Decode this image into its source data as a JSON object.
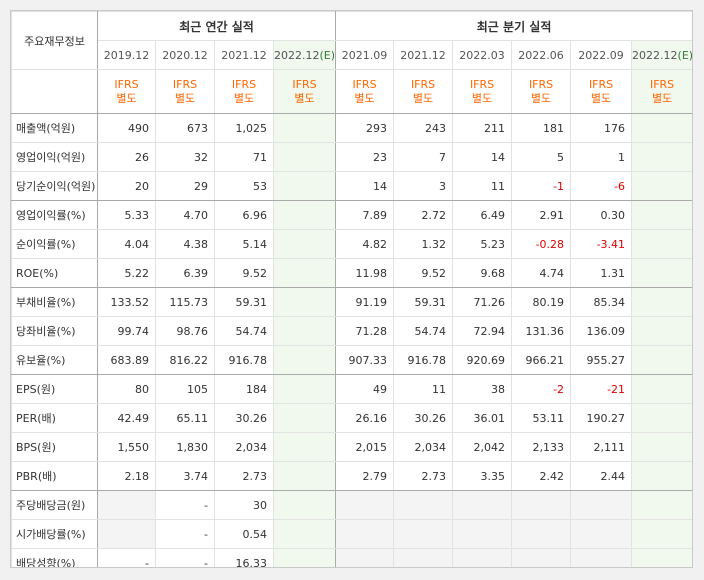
{
  "header": {
    "corner": "주요재무정보",
    "annual_title": "최근 연간 실적",
    "quarter_title": "최근 분기 실적"
  },
  "periods": [
    {
      "label": "2019.12",
      "estimate": false
    },
    {
      "label": "2020.12",
      "estimate": false
    },
    {
      "label": "2021.12",
      "estimate": false
    },
    {
      "label": "2022.12",
      "estimate": true
    },
    {
      "label": "2021.09",
      "estimate": false
    },
    {
      "label": "2021.12",
      "estimate": false
    },
    {
      "label": "2022.03",
      "estimate": false
    },
    {
      "label": "2022.06",
      "estimate": false
    },
    {
      "label": "2022.09",
      "estimate": false
    },
    {
      "label": "2022.12",
      "estimate": true
    }
  ],
  "estimate_mark": "(E)",
  "basis": {
    "line1": "IFRS",
    "line2": "별도"
  },
  "rows": [
    {
      "label": "매출액(억원)",
      "values": [
        "490",
        "673",
        "1,025",
        "",
        "293",
        "243",
        "211",
        "181",
        "176",
        ""
      ]
    },
    {
      "label": "영업이익(억원)",
      "values": [
        "26",
        "32",
        "71",
        "",
        "23",
        "7",
        "14",
        "5",
        "1",
        ""
      ]
    },
    {
      "label": "당기순이익(억원)",
      "values": [
        "20",
        "29",
        "53",
        "",
        "14",
        "3",
        "11",
        "-1",
        "-6",
        ""
      ],
      "group_end": true
    },
    {
      "label": "영업이익률(%)",
      "values": [
        "5.33",
        "4.70",
        "6.96",
        "",
        "7.89",
        "2.72",
        "6.49",
        "2.91",
        "0.30",
        ""
      ]
    },
    {
      "label": "순이익률(%)",
      "values": [
        "4.04",
        "4.38",
        "5.14",
        "",
        "4.82",
        "1.32",
        "5.23",
        "-0.28",
        "-3.41",
        ""
      ]
    },
    {
      "label": "ROE(%)",
      "values": [
        "5.22",
        "6.39",
        "9.52",
        "",
        "11.98",
        "9.52",
        "9.68",
        "4.74",
        "1.31",
        ""
      ],
      "group_end": true
    },
    {
      "label": "부채비율(%)",
      "values": [
        "133.52",
        "115.73",
        "59.31",
        "",
        "91.19",
        "59.31",
        "71.26",
        "80.19",
        "85.34",
        ""
      ]
    },
    {
      "label": "당좌비율(%)",
      "values": [
        "99.74",
        "98.76",
        "54.74",
        "",
        "71.28",
        "54.74",
        "72.94",
        "131.36",
        "136.09",
        ""
      ]
    },
    {
      "label": "유보율(%)",
      "values": [
        "683.89",
        "816.22",
        "916.78",
        "",
        "907.33",
        "916.78",
        "920.69",
        "966.21",
        "955.27",
        ""
      ],
      "group_end": true
    },
    {
      "label": "EPS(원)",
      "values": [
        "80",
        "105",
        "184",
        "",
        "49",
        "11",
        "38",
        "-2",
        "-21",
        ""
      ]
    },
    {
      "label": "PER(배)",
      "values": [
        "42.49",
        "65.11",
        "30.26",
        "",
        "26.16",
        "30.26",
        "36.01",
        "53.11",
        "190.27",
        ""
      ]
    },
    {
      "label": "BPS(원)",
      "values": [
        "1,550",
        "1,830",
        "2,034",
        "",
        "2,015",
        "2,034",
        "2,042",
        "2,133",
        "2,111",
        ""
      ]
    },
    {
      "label": "PBR(배)",
      "values": [
        "2.18",
        "3.74",
        "2.73",
        "",
        "2.79",
        "2.73",
        "3.35",
        "2.42",
        "2.44",
        ""
      ],
      "group_end": true
    },
    {
      "label": "주당배당금(원)",
      "values": [
        "",
        "-",
        "30",
        "",
        "",
        "",
        "",
        "",
        "",
        ""
      ],
      "empty": [
        0,
        4,
        5,
        6,
        7,
        8
      ]
    },
    {
      "label": "시가배당률(%)",
      "values": [
        "",
        "-",
        "0.54",
        "",
        "",
        "",
        "",
        "",
        "",
        ""
      ],
      "empty": [
        0,
        4,
        5,
        6,
        7,
        8
      ]
    },
    {
      "label": "배당성향(%)",
      "values": [
        "-",
        "-",
        "16.33",
        "",
        "",
        "",
        "",
        "",
        "",
        ""
      ],
      "empty": [
        4,
        5,
        6,
        7,
        8
      ]
    }
  ],
  "colors": {
    "negative": "#e00000",
    "basis": "#ff6600",
    "estimate_bg": "#f1f8ee",
    "estimate_mark": "#2e7d32"
  }
}
